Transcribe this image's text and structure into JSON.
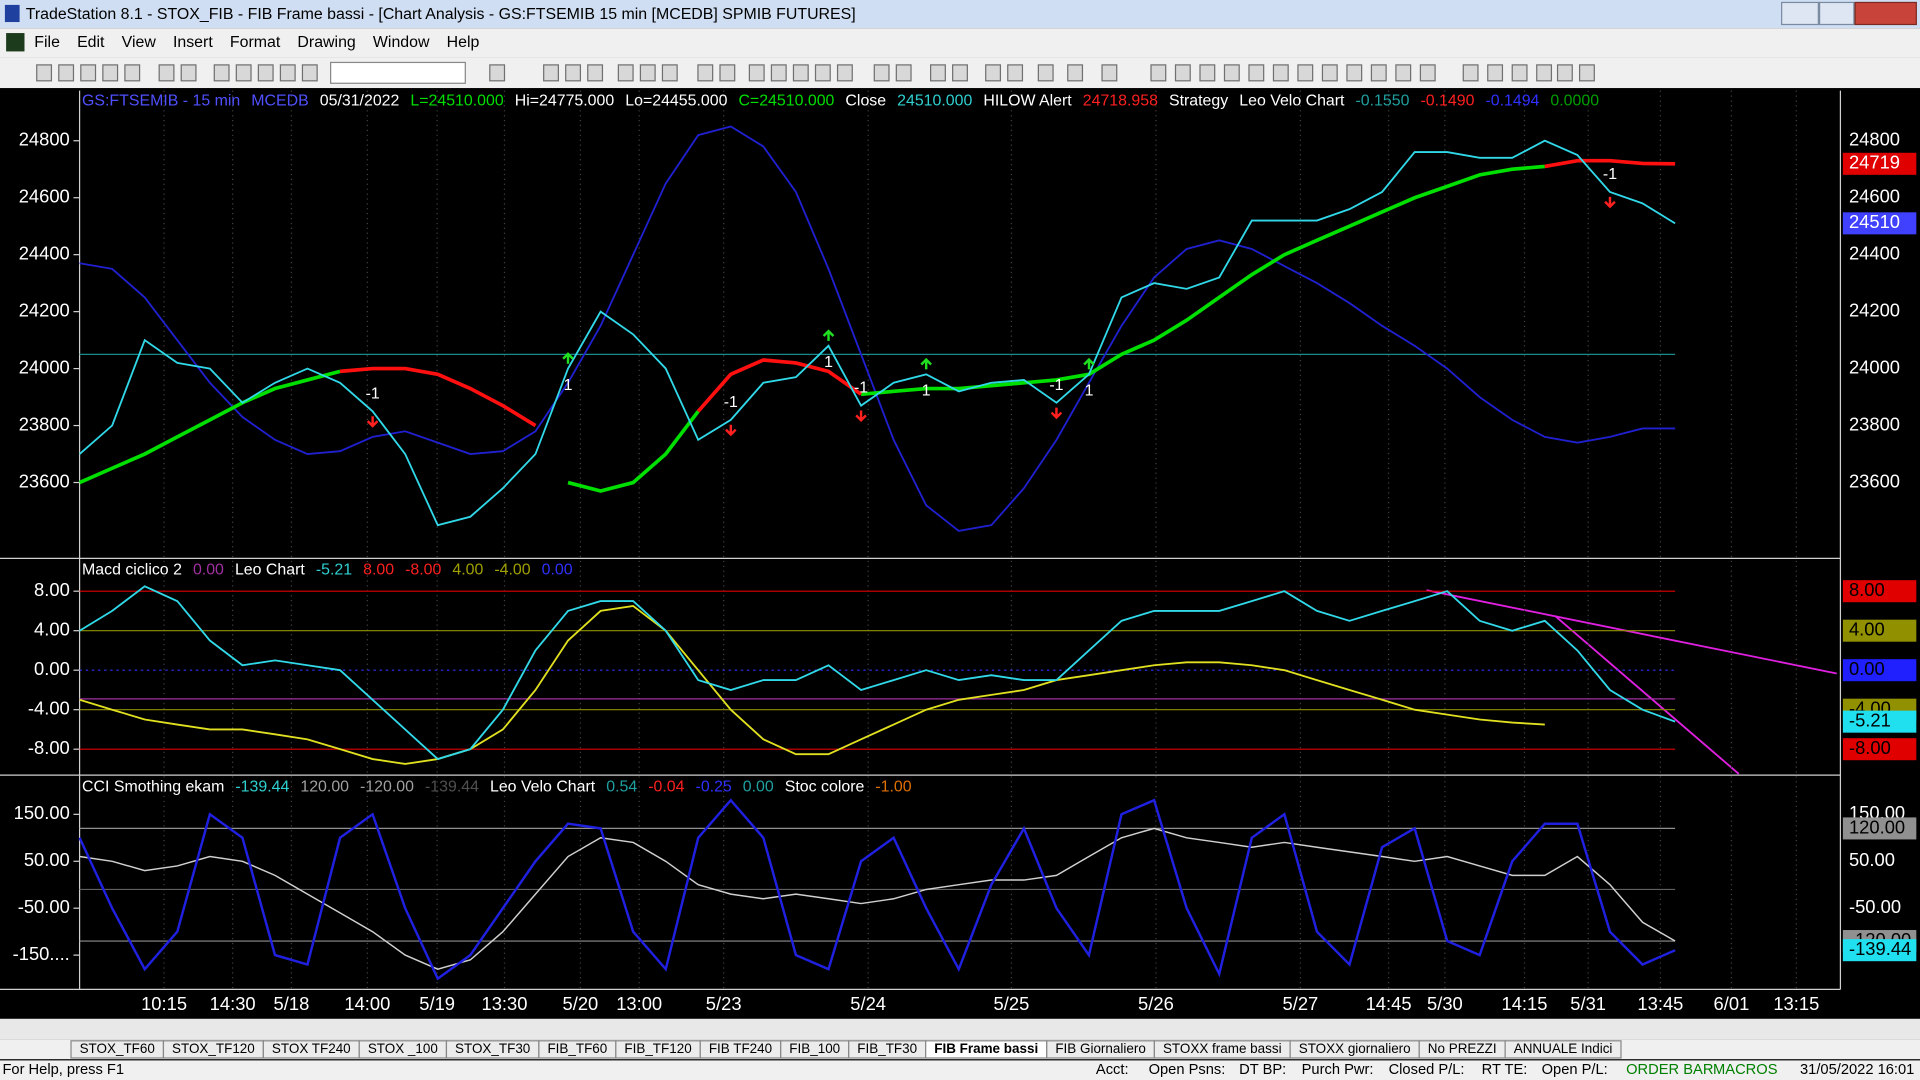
{
  "window": {
    "title": "TradeStation 8.1 - STOX_FIB - FIB Frame bassi - [Chart Analysis - GS:FTSEMIB  15 min  [MCEDB] SPMIB FUTURES]"
  },
  "menu": [
    "File",
    "Edit",
    "View",
    "Insert",
    "Format",
    "Drawing",
    "Window",
    "Help"
  ],
  "chart_data": [
    {
      "type": "line",
      "header": [
        {
          "text": "GS:FTSEMIB - 15 min",
          "color": "#5050ff"
        },
        {
          "text": "MCEDB",
          "color": "#5050ff"
        },
        {
          "text": "05/31/2022",
          "color": "#ffffff"
        },
        {
          "text": "L=24510.000",
          "color": "#00e000"
        },
        {
          "text": "Hi=24775.000",
          "color": "#ffffff"
        },
        {
          "text": "Lo=24455.000",
          "color": "#ffffff"
        },
        {
          "text": "C=24510.000",
          "color": "#00e000"
        },
        {
          "text": "Close",
          "color": "#ffffff"
        },
        {
          "text": "24510.000",
          "color": "#30d0d0"
        },
        {
          "text": "HILOW Alert",
          "color": "#ffffff"
        },
        {
          "text": "24718.958",
          "color": "#ff2020"
        },
        {
          "text": "Strategy",
          "color": "#ffffff"
        },
        {
          "text": "Leo Velo Chart",
          "color": "#ffffff"
        },
        {
          "text": "-0.1550",
          "color": "#20a0a0"
        },
        {
          "text": "-0.1490",
          "color": "#ff2020"
        },
        {
          "text": "-0.1494",
          "color": "#3030ff"
        },
        {
          "text": "0.0000",
          "color": "#00a000"
        }
      ],
      "ylim": [
        23338,
        24976
      ],
      "yticks": [
        23600,
        23800,
        24000,
        24200,
        24400,
        24600,
        24800
      ],
      "hlines": [
        {
          "value": 24050,
          "color": "#1a8a8a",
          "dash": false
        }
      ],
      "series": [
        {
          "color": "#2020d0",
          "width": 1.5,
          "values": [
            24370,
            24350,
            24250,
            24100,
            23950,
            23830,
            23750,
            23700,
            23710,
            23760,
            23780,
            23740,
            23700,
            23710,
            23780,
            23950,
            24150,
            24400,
            24650,
            24820,
            24850,
            24780,
            24620,
            24350,
            24050,
            23750,
            23520,
            23430,
            23450,
            23580,
            23750,
            23950,
            24150,
            24320,
            24420,
            24450,
            24420,
            24360,
            24300,
            24230,
            24150,
            24080,
            24000,
            23900,
            23820,
            23760,
            23740,
            23760,
            23790,
            23790
          ]
        },
        {
          "color": "#00e000",
          "width": 3,
          "values": [
            23600,
            23650,
            23700,
            23760,
            23820,
            23880,
            23930,
            23960,
            23990,
            null,
            null,
            null,
            null,
            null,
            null,
            23600,
            23570,
            23600,
            23700,
            23850,
            null,
            null,
            null,
            null,
            23910,
            23920,
            23930,
            23930,
            23940,
            23950,
            23960,
            23980,
            24050,
            24100,
            24170,
            24250,
            24330,
            24400,
            24450,
            24500,
            24550,
            24600,
            24640,
            24680,
            24700,
            24710,
            null,
            null,
            null,
            null
          ]
        },
        {
          "color": "#ff1010",
          "width": 3,
          "values": [
            null,
            null,
            null,
            null,
            null,
            null,
            null,
            null,
            23990,
            24000,
            24000,
            23980,
            23930,
            23870,
            23800,
            null,
            null,
            null,
            null,
            23850,
            23980,
            24030,
            24020,
            23990,
            23910,
            null,
            null,
            null,
            null,
            null,
            null,
            null,
            null,
            null,
            null,
            null,
            null,
            null,
            null,
            null,
            null,
            null,
            null,
            null,
            null,
            24710,
            24730,
            24730,
            24720,
            24719
          ]
        },
        {
          "color": "#30d8e8",
          "width": 1.5,
          "values": [
            23700,
            23800,
            24100,
            24020,
            24000,
            23880,
            23950,
            24000,
            23950,
            23850,
            23700,
            23450,
            23480,
            23580,
            23700,
            24000,
            24200,
            24120,
            24000,
            23750,
            23820,
            23950,
            23970,
            24080,
            23870,
            23950,
            23980,
            23920,
            23950,
            23960,
            23880,
            23980,
            24250,
            24300,
            24280,
            24320,
            24520,
            24520,
            24520,
            24560,
            24620,
            24760,
            24760,
            24740,
            24740,
            24800,
            24750,
            24620,
            24580,
            24510
          ]
        }
      ],
      "signals": [
        null,
        null,
        null,
        null,
        null,
        null,
        null,
        null,
        null,
        -1,
        null,
        null,
        null,
        null,
        null,
        1,
        null,
        null,
        null,
        null,
        -1,
        null,
        null,
        1,
        -1,
        null,
        1,
        null,
        null,
        null,
        -1,
        1,
        null,
        null,
        null,
        null,
        null,
        null,
        null,
        null,
        null,
        null,
        null,
        null,
        null,
        null,
        null,
        -1,
        null,
        null
      ],
      "markers": [
        {
          "value": 24719,
          "color": "#e00000",
          "text_color": "#ffffff"
        },
        {
          "value": 24510,
          "color": "#4040ff",
          "text_color": "#ffffff"
        }
      ]
    },
    {
      "type": "line",
      "header": [
        {
          "text": "Macd ciclico 2",
          "color": "#ffffff"
        },
        {
          "text": "0.00",
          "color": "#a030a0"
        },
        {
          "text": "Leo Chart",
          "color": "#ffffff"
        },
        {
          "text": "-5.21",
          "color": "#30d0d0"
        },
        {
          "text": "8.00",
          "color": "#ff2020"
        },
        {
          "text": "-8.00",
          "color": "#ff2020"
        },
        {
          "text": "4.00",
          "color": "#a0a000"
        },
        {
          "text": "-4.00",
          "color": "#a0a000"
        },
        {
          "text": "0.00",
          "color": "#3030ff"
        }
      ],
      "ylim": [
        -10.5,
        11.2
      ],
      "yticks": [
        {
          "value": -8,
          "label": "-8.00"
        },
        {
          "value": -4,
          "label": "-4.00"
        },
        {
          "value": 0,
          "label": "0.00"
        },
        {
          "value": 4,
          "label": "4.00"
        },
        {
          "value": 8,
          "label": "8.00"
        }
      ],
      "hlines": [
        {
          "value": 8,
          "color": "#e00000",
          "dash": false
        },
        {
          "value": 4,
          "color": "#909000",
          "dash": false
        },
        {
          "value": 0,
          "color": "#3030ff",
          "dash": true
        },
        {
          "value": -2.9,
          "color": "#a030a0",
          "dash": false
        },
        {
          "value": -4,
          "color": "#909000",
          "dash": false
        },
        {
          "value": -8,
          "color": "#e00000",
          "dash": false
        }
      ],
      "series": [
        {
          "color": "#e0e020",
          "width": 1.5,
          "values": [
            -3,
            -4,
            -5,
            -5.5,
            -6,
            -6,
            -6.5,
            -7,
            -8,
            -9,
            -9.5,
            -9,
            -8,
            -6,
            -2,
            3,
            6,
            6.5,
            4,
            0,
            -4,
            -7,
            -8.5,
            -8.5,
            -7,
            -5.5,
            -4,
            -3,
            -2.5,
            -2,
            -1,
            -0.5,
            0,
            0.5,
            0.8,
            0.8,
            0.5,
            0,
            -1,
            -2,
            -3,
            -4,
            -4.5,
            -5,
            -5.3,
            -5.5,
            null,
            null,
            null,
            null
          ]
        },
        {
          "color": "#30d8e8",
          "width": 1.5,
          "values": [
            4,
            6,
            8.5,
            7,
            3,
            0.5,
            1,
            0.5,
            0,
            -3,
            -6,
            -9,
            -8,
            -4,
            2,
            6,
            7,
            7,
            4,
            -1,
            -2,
            -1,
            -1,
            0.5,
            -2,
            -1,
            0,
            -1,
            -0.5,
            -1,
            -1,
            2,
            5,
            6,
            6,
            6,
            7,
            8,
            6,
            5,
            6,
            7,
            8,
            5,
            4,
            5,
            2,
            -2,
            -4,
            -5.21
          ]
        }
      ],
      "markers": [
        {
          "value": 8,
          "label": "8.00",
          "color": "#e00000",
          "text_color": "#000000"
        },
        {
          "value": 4,
          "label": "4.00",
          "color": "#909000",
          "text_color": "#000000"
        },
        {
          "value": 0,
          "label": "0.00",
          "color": "#2020ff",
          "text_color": "#000000"
        },
        {
          "value": -4,
          "label": "-4.00",
          "color": "#909000",
          "text_color": "#000000"
        },
        {
          "value": -5.21,
          "label": "-5.21",
          "color": "#20e0f0",
          "text_color": "#000000"
        },
        {
          "value": -8,
          "label": "-8.00",
          "color": "#e00000",
          "text_color": "#000000"
        }
      ]
    },
    {
      "type": "line",
      "header": [
        {
          "text": "CCI Smothing ekam",
          "color": "#ffffff"
        },
        {
          "text": "-139.44",
          "color": "#30d0d0"
        },
        {
          "text": "120.00",
          "color": "#a0a0a0"
        },
        {
          "text": "-120.00",
          "color": "#a0a0a0"
        },
        {
          "text": "-139.44",
          "color": "#505050"
        },
        {
          "text": "Leo Velo Chart",
          "color": "#ffffff"
        },
        {
          "text": "0.54",
          "color": "#20a0a0"
        },
        {
          "text": "-0.04",
          "color": "#ff2020"
        },
        {
          "text": "-0.25",
          "color": "#3030ff"
        },
        {
          "text": "0.00",
          "color": "#20a0a0"
        },
        {
          "text": "Stoc colore",
          "color": "#ffffff"
        },
        {
          "text": "-1.00",
          "color": "#e07000"
        }
      ],
      "ylim": [
        -223,
        231
      ],
      "yticks": [
        {
          "value": -150,
          "label": "-150...."
        },
        {
          "value": -50,
          "label": "-50.00"
        },
        {
          "value": 50,
          "label": "50.00"
        },
        {
          "value": 150,
          "label": "150.00"
        }
      ],
      "hlines": [
        {
          "value": 120,
          "color": "#909090",
          "dash": false
        },
        {
          "value": -10,
          "color": "#606060",
          "dash": false
        },
        {
          "value": -120,
          "color": "#909090",
          "dash": false
        }
      ],
      "series": [
        {
          "color": "#d0d0d0",
          "width": 1.2,
          "values": [
            60,
            50,
            30,
            40,
            60,
            50,
            20,
            -20,
            -60,
            -100,
            -150,
            -180,
            -160,
            -100,
            -20,
            60,
            100,
            90,
            50,
            0,
            -20,
            -30,
            -20,
            -30,
            -40,
            -30,
            -10,
            0,
            10,
            10,
            20,
            60,
            100,
            120,
            100,
            90,
            80,
            90,
            80,
            70,
            60,
            50,
            60,
            40,
            20,
            20,
            60,
            0,
            -80,
            -120
          ]
        },
        {
          "color": "#2020e0",
          "width": 2,
          "values": [
            100,
            -50,
            -180,
            -100,
            150,
            100,
            -150,
            -170,
            100,
            150,
            -50,
            -200,
            -150,
            -50,
            50,
            130,
            120,
            -100,
            -180,
            100,
            180,
            100,
            -150,
            -180,
            50,
            100,
            -50,
            -180,
            0,
            120,
            -50,
            -150,
            150,
            180,
            -50,
            -190,
            100,
            150,
            -100,
            -170,
            80,
            120,
            -120,
            -150,
            50,
            130,
            130,
            -100,
            -170,
            -139.44
          ]
        }
      ],
      "markers": [
        {
          "value": 150,
          "label": "150.00",
          "color": "#000000",
          "text_color": "#ffffff"
        },
        {
          "value": 120,
          "label": "120.00",
          "color": "#909090",
          "text_color": "#000000"
        },
        {
          "value": 50,
          "label": "50.00",
          "color": "#000000",
          "text_color": "#ffffff"
        },
        {
          "value": -50,
          "label": "-50.00",
          "color": "#000000",
          "text_color": "#ffffff"
        },
        {
          "value": -120,
          "label": "-120.00",
          "color": "#909090",
          "text_color": "#000000"
        },
        {
          "value": -139.44,
          "label": "-139.44",
          "color": "#20e0f0",
          "text_color": "#000000"
        }
      ]
    }
  ],
  "x_labels": [
    "10:15",
    "14:30",
    "5/18",
    "14:00",
    "5/19",
    "13:30",
    "5/20",
    "13:00",
    "5/23",
    "5/24",
    "5/25",
    "5/26",
    "5/27",
    "14:45",
    "5/30",
    "14:15",
    "5/31",
    "13:45",
    "6/01",
    "13:15"
  ],
  "tabs": [
    {
      "label": "STOX_TF60"
    },
    {
      "label": "STOX_TF120"
    },
    {
      "label": "STOX TF240"
    },
    {
      "label": "STOX _100"
    },
    {
      "label": "STOX_TF30"
    },
    {
      "label": "FIB_TF60"
    },
    {
      "label": "FIB_TF120"
    },
    {
      "label": "FIB TF240"
    },
    {
      "label": "FIB_100"
    },
    {
      "label": "FIB_TF30"
    },
    {
      "label": "FIB Frame bassi",
      "active": true
    },
    {
      "label": "FIB Giornaliero"
    },
    {
      "label": "STOXX frame bassi"
    },
    {
      "label": "STOXX giornaliero"
    },
    {
      "label": "No PREZZI"
    },
    {
      "label": "ANNUALE Indici"
    }
  ],
  "status": {
    "help": "For Help, press F1",
    "items": [
      {
        "text": "Acct:",
        "color": "#000000"
      },
      {
        "text": "Open Psns:",
        "color": "#000000"
      },
      {
        "text": "DT BP:",
        "color": "#000000"
      },
      {
        "text": "Purch Pwr:",
        "color": "#000000"
      },
      {
        "text": "Closed P/L:",
        "color": "#000000"
      },
      {
        "text": "RT TE:",
        "color": "#000000"
      },
      {
        "text": "Open P/L:",
        "color": "#000000"
      },
      {
        "text": "ORDER BAR",
        "color": "#008000"
      },
      {
        "text": "MACROS",
        "color": "#008000"
      },
      {
        "text": "31/05/2022 16:01",
        "color": "#000000"
      }
    ]
  }
}
